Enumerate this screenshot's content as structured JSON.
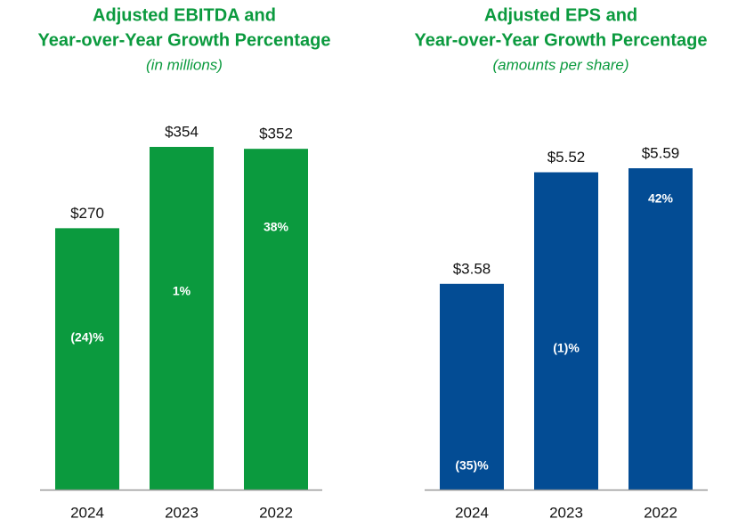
{
  "chart_data": [
    {
      "type": "bar",
      "title": [
        "Adjusted EBITDA and",
        "Year-over-Year Growth Percentage"
      ],
      "subtitle": "(in millions)",
      "categories": [
        "2024",
        "2023",
        "2022"
      ],
      "values": [
        270,
        354,
        352
      ],
      "value_labels": [
        "$270",
        "$354",
        "$352"
      ],
      "annotations": [
        "(24)%",
        "1%",
        "38%"
      ],
      "color": "#0b9a3e"
    },
    {
      "type": "bar",
      "title": [
        "Adjusted EPS and",
        "Year-over-Year Growth Percentage"
      ],
      "subtitle": "(amounts per share)",
      "categories": [
        "2024",
        "2023",
        "2022"
      ],
      "values": [
        3.58,
        5.52,
        5.59
      ],
      "value_labels": [
        "$3.58",
        "$5.52",
        "$5.59"
      ],
      "annotations": [
        "(35)%",
        "(1)%",
        "42%"
      ],
      "color": "#034c94"
    }
  ]
}
